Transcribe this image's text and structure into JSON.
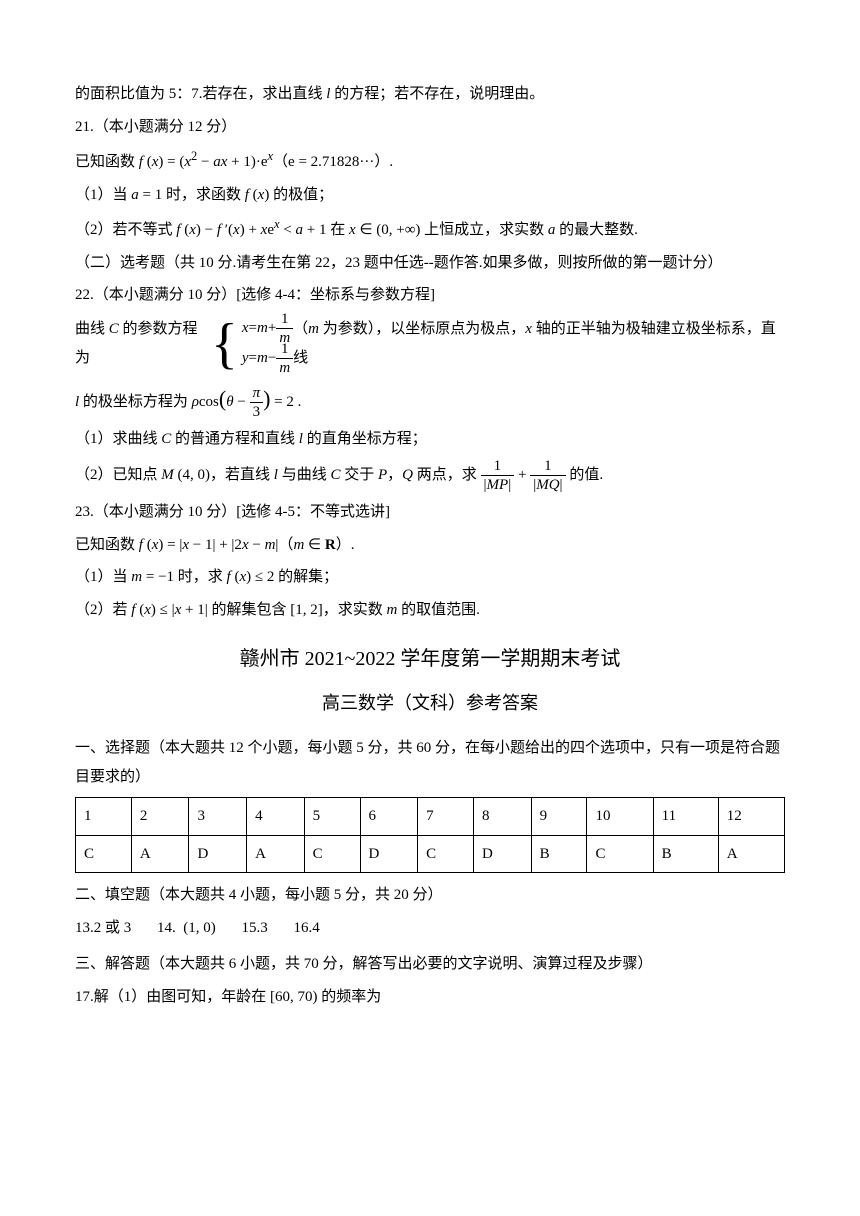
{
  "q20_trail": "的面积比值为 5：7.若存在，求出直线 l 的方程；若不存在，说明理由。",
  "q21_h": "21.（本小题满分 12 分）",
  "q21_f": "已知函数 f(x) = (x² − ax + 1)·eˣ（e = 2.71828···）.",
  "q21_p1": "（1）当 a = 1 时，求函数 f(x) 的极值；",
  "q21_p2": "（2）若不等式 f(x) − f′(x) + xeˣ < a + 1 在 x ∈ (0, +∞) 上恒成立，求实数 a 的最大整数.",
  "section2": "（二）选考题（共 10 分.请考生在第 22，23 题中任选--题作答.如果多做，则按所做的第一题计分）",
  "q22_h": "22.（本小题满分 10 分）[选修 4-4：坐标系与参数方程]",
  "q22_pre": "曲线 C 的参数方程为",
  "q22_eq1a": "x = m + ",
  "q22_eq2a": "y = m − ",
  "q22_frac_m": "m",
  "q22_frac_1": "1",
  "q22_post": "（m 为参数），以坐标原点为极点，x 轴的正半轴为极轴建立极坐标系，直线",
  "q22_l_pre": "l 的极坐标方程为 ρcos",
  "q22_l_in": "θ − ",
  "q22_l_frac_num": "π",
  "q22_l_frac_den": "3",
  "q22_l_post": " = 2 .",
  "q22_p1": "（1）求曲线 C 的普通方程和直线 l 的直角坐标方程；",
  "q22_p2_a": "（2）已知点 M(4, 0)，若直线 l 与曲线 C 交于 P，Q 两点，求 ",
  "q22_p2_mp": "|MP|",
  "q22_p2_plus": " + ",
  "q22_p2_mq": "|MQ|",
  "q22_p2_b": " 的值.",
  "q22_frac1": "1",
  "q23_h": "23.（本小题满分 10 分）[选修 4-5：不等式选讲]",
  "q23_f": "已知函数 f(x) = |x − 1| + |2x − m|（m ∈ R）.",
  "q23_p1": "（1）当 m = −1 时，求 f(x) ≤ 2 的解集；",
  "q23_p2": "（2）若 f(x) ≤ |x + 1| 的解集包含 [1, 2]，求实数 m 的取值范围.",
  "ans_title": "赣州市 2021~2022 学年度第一学期期末考试",
  "ans_sub": "高三数学（文科）参考答案",
  "sec1": "一、选择题（本大题共 12 个小题，每小题 5 分，共 60 分，在每小题给出的四个选项中，只有一项是符合题目要求的）",
  "table": {
    "nums": [
      "1",
      "2",
      "3",
      "4",
      "5",
      "6",
      "7",
      "8",
      "9",
      "10",
      "11",
      "12"
    ],
    "answers": [
      "C",
      "A",
      "D",
      "A",
      "C",
      "D",
      "C",
      "D",
      "B",
      "C",
      "B",
      "A"
    ]
  },
  "sec2": "二、填空题（本大题共 4 小题，每小题 5 分，共 20 分）",
  "fb13": "13.2 或 3",
  "fb14": "14.  (1, 0)",
  "fb15": "15.3",
  "fb16": "16.4",
  "sec3": "三、解答题（本大题共 6 小题，共 70 分，解答写出必要的文字说明、演算过程及步骤）",
  "q17": "17.解（1）由图可知，年龄在 [60, 70) 的频率为"
}
